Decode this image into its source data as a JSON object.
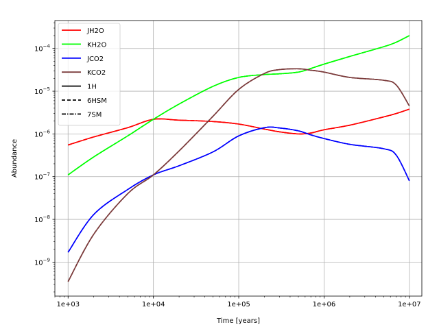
{
  "chart_data": {
    "type": "line",
    "title": "",
    "xlabel": "Time [years]",
    "ylabel": "Abundance",
    "xscale": "log",
    "yscale": "log",
    "xlim": [
      700,
      14000000
    ],
    "ylim": [
      1.6e-10,
      0.00045
    ],
    "grid": true,
    "legend_position": "top-left",
    "x_ticks": [
      {
        "value": 1000,
        "label": "1e+03"
      },
      {
        "value": 10000,
        "label": "1e+04"
      },
      {
        "value": 100000,
        "label": "1e+05"
      },
      {
        "value": 1000000,
        "label": "1e+06"
      },
      {
        "value": 10000000,
        "label": "1e+07"
      }
    ],
    "y_ticks": [
      {
        "value": 1e-09,
        "base": "10",
        "exp": "−9"
      },
      {
        "value": 1e-08,
        "base": "10",
        "exp": "−8"
      },
      {
        "value": 1e-07,
        "base": "10",
        "exp": "−7"
      },
      {
        "value": 1e-06,
        "base": "10",
        "exp": "−6"
      },
      {
        "value": 1e-05,
        "base": "10",
        "exp": "−5"
      },
      {
        "value": 0.0001,
        "base": "10",
        "exp": "−4"
      }
    ],
    "x": [
      1000,
      2000,
      5000,
      10000,
      20000,
      50000,
      100000,
      200000,
      300000,
      500000,
      700000,
      1000000,
      2000000,
      5000000,
      7000000,
      10000000
    ],
    "series": [
      {
        "name": "JH2O",
        "color": "#ff0000",
        "values": [
          5.5e-07,
          8.5e-07,
          1.4e-06,
          2.2e-06,
          2.1e-06,
          1.95e-06,
          1.7e-06,
          1.3e-06,
          1.12e-06,
          1e-06,
          1.05e-06,
          1.25e-06,
          1.6e-06,
          2.5e-06,
          3e-06,
          3.8e-06
        ]
      },
      {
        "name": "KH2O",
        "color": "#00ff00",
        "values": [
          1.1e-07,
          2.9e-07,
          9e-07,
          2.2e-06,
          5e-06,
          1.3e-05,
          2.1e-05,
          2.45e-05,
          2.55e-05,
          2.8e-05,
          3.4e-05,
          4.3e-05,
          6.5e-05,
          0.00011,
          0.00014,
          0.0002
        ]
      },
      {
        "name": "JCO2",
        "color": "#0000ff",
        "values": [
          1.7e-09,
          1.3e-08,
          5e-08,
          1.1e-07,
          1.8e-07,
          3.8e-07,
          9e-07,
          1.4e-06,
          1.38e-06,
          1.18e-06,
          9.5e-07,
          7.8e-07,
          5.7e-07,
          4.5e-07,
          3.2e-07,
          8e-08
        ]
      },
      {
        "name": "KCO2",
        "color": "#7b3b3b",
        "values": [
          3.5e-10,
          4.5e-09,
          4e-08,
          1.1e-07,
          4e-07,
          2.6e-06,
          1.1e-05,
          2.6e-05,
          3.2e-05,
          3.35e-05,
          3.1e-05,
          2.8e-05,
          2.1e-05,
          1.8e-05,
          1.4e-05,
          4.5e-06
        ]
      }
    ],
    "legend_entries": [
      {
        "label": "JH2O",
        "color": "#ff0000",
        "style": "solid"
      },
      {
        "label": "KH2O",
        "color": "#00ff00",
        "style": "solid"
      },
      {
        "label": "JCO2",
        "color": "#0000ff",
        "style": "solid"
      },
      {
        "label": "KCO2",
        "color": "#7b3b3b",
        "style": "solid"
      },
      {
        "label": "1H",
        "color": "#000000",
        "style": "solid"
      },
      {
        "label": "6HSM",
        "color": "#000000",
        "style": "dashed"
      },
      {
        "label": "7SM",
        "color": "#000000",
        "style": "dashdot"
      }
    ]
  }
}
